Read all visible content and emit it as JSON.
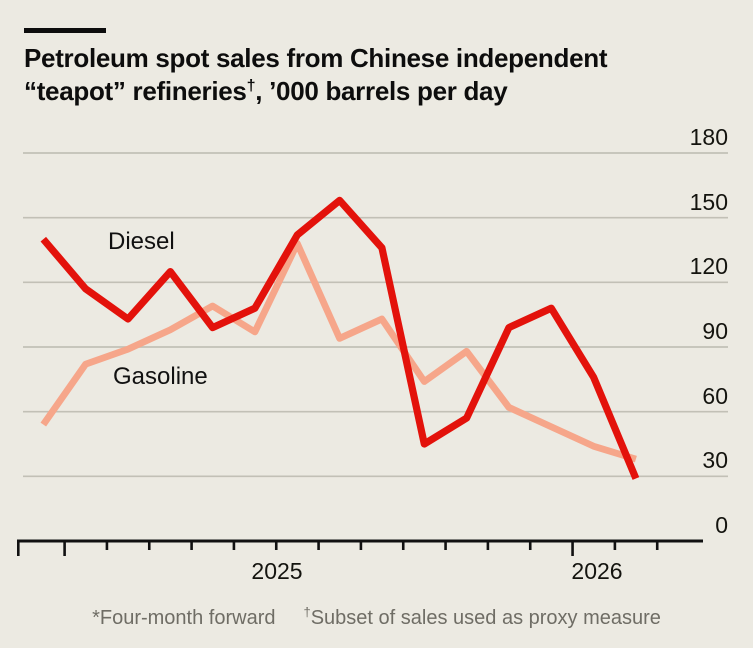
{
  "page": {
    "background": "#ECEAE2",
    "accent_rule_color": "#0D0D0D"
  },
  "header": {
    "title_line1": "Petroleum spot sales from Chinese independent",
    "title_line2_pre": "“teapot” refineries",
    "title_dagger": "†",
    "title_line2_post": ", ’000 barrels per day"
  },
  "chart_data": {
    "type": "line",
    "title": "Petroleum spot sales from Chinese independent “teapot” refineries, ’000 barrels per day",
    "x_index": [
      1,
      2,
      3,
      4,
      5,
      6,
      7,
      8,
      9,
      10,
      11,
      12,
      13,
      14,
      15
    ],
    "x_axis": {
      "tick_labels": [
        "2025",
        "2026"
      ],
      "minor_ticks": "monthly",
      "year_tick_after_index": 12
    },
    "y_axis": {
      "side": "right",
      "range": [
        0,
        180
      ],
      "ticks": [
        0,
        30,
        60,
        90,
        120,
        150,
        180
      ]
    },
    "grid": "horizontal",
    "legend_position": "inline-labels",
    "series": [
      {
        "name": "Diesel",
        "color": "#E3120B",
        "values": [
          140,
          117,
          103,
          125,
          99,
          108,
          142,
          158,
          136,
          45,
          57,
          99,
          108,
          76,
          29
        ]
      },
      {
        "name": "Gasoline",
        "color": "#F6A68A",
        "values": [
          54,
          82,
          89,
          98,
          109,
          97,
          138,
          94,
          103,
          74,
          88,
          62,
          53,
          44,
          38
        ]
      }
    ]
  },
  "colors": {
    "grid": "#C2C0B6",
    "axis": "#111111",
    "y_label_text": "#14140F",
    "footnote_text": "#6F6D65"
  },
  "footnotes": {
    "note1": "*Four-month forward",
    "note2_dagger": "†",
    "note2": "Subset of sales used as proxy measure"
  }
}
